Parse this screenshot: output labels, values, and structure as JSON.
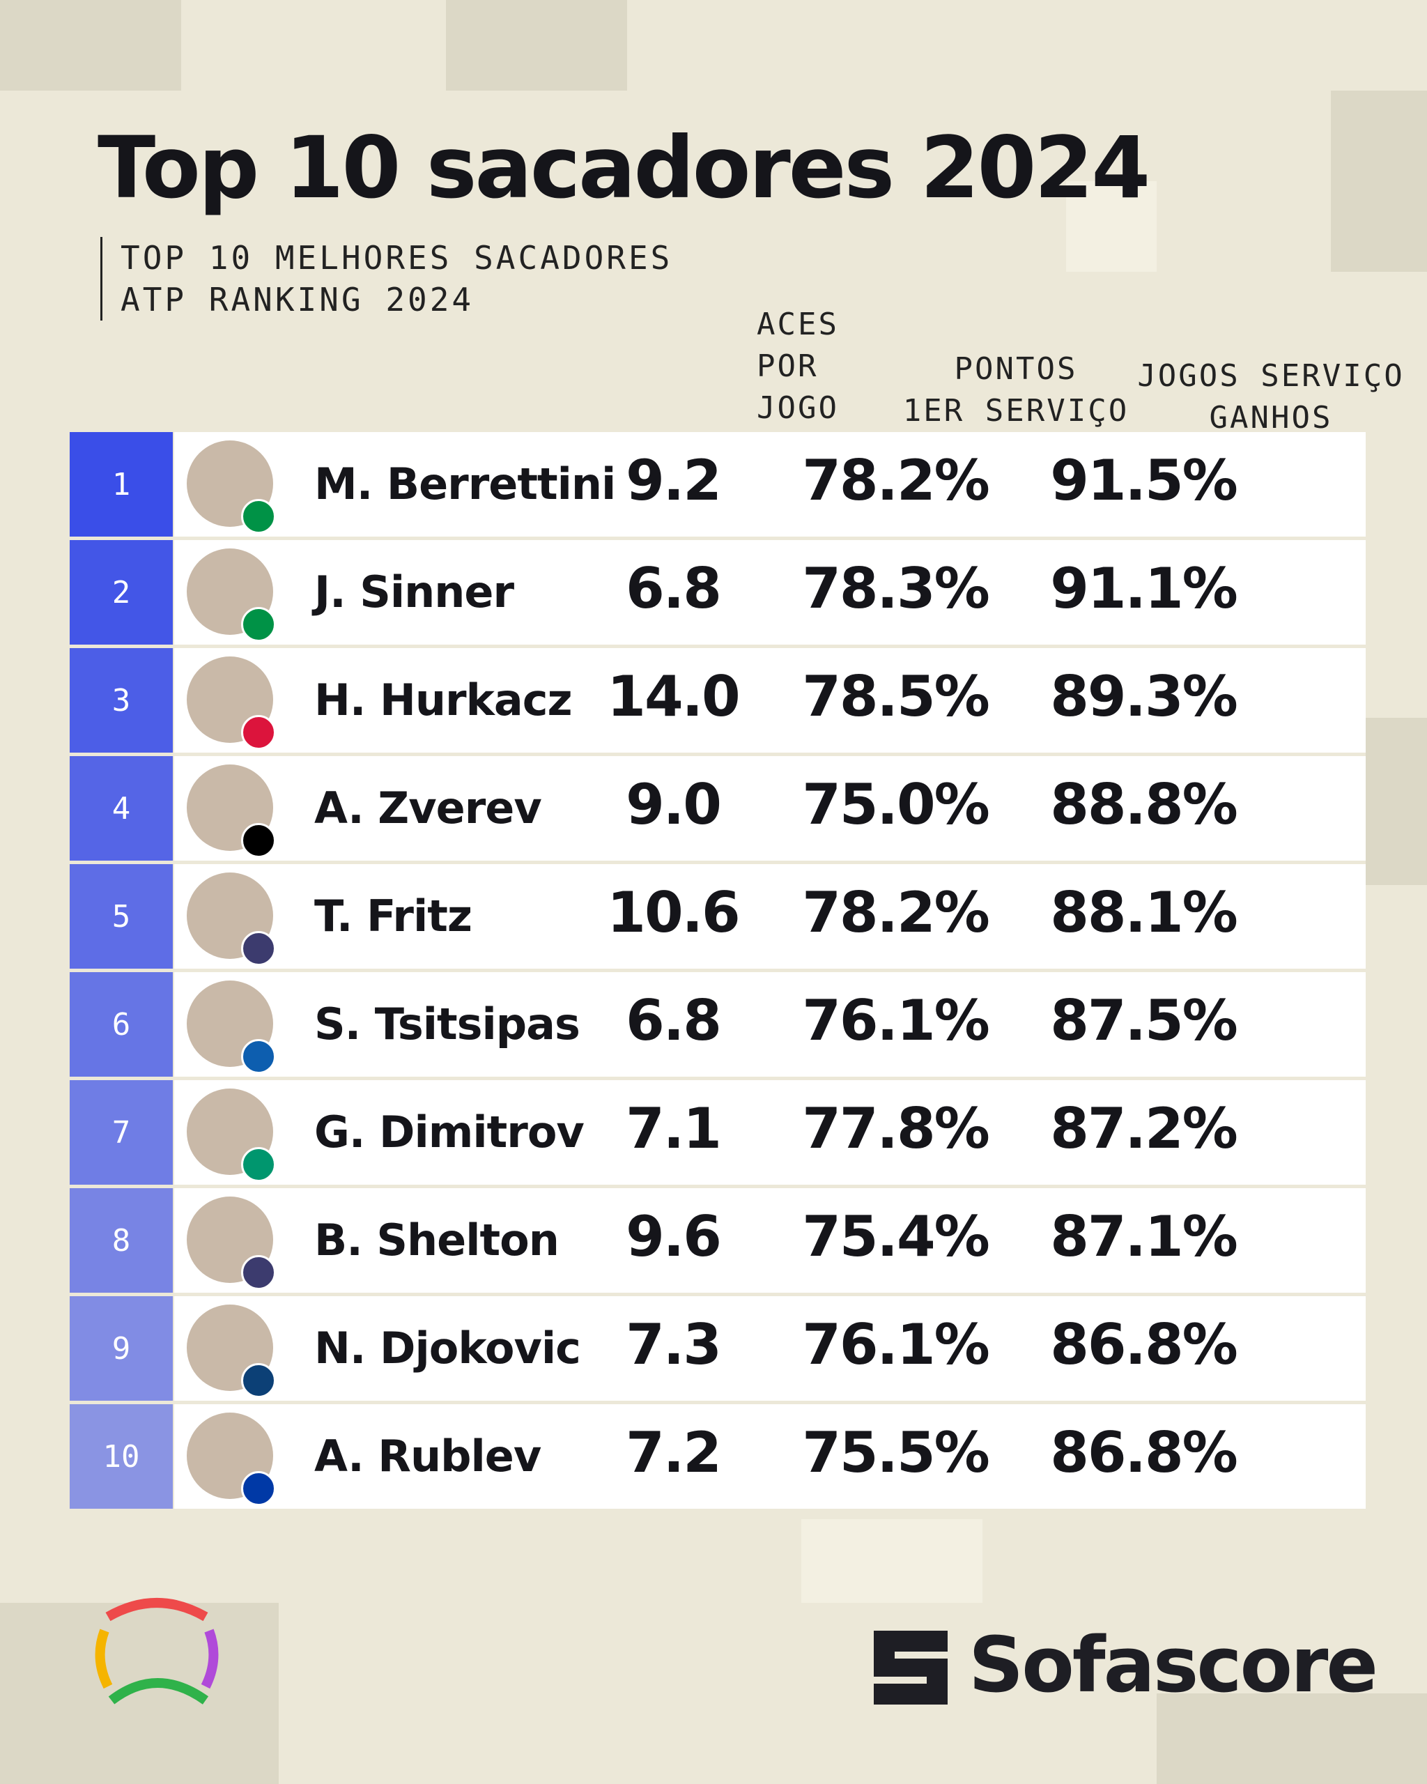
{
  "header": {
    "title": "Top 10 sacadores 2024",
    "subtitle_lines": [
      "TOP 10 MELHORES SACADORES",
      "ATP RANKING 2024"
    ]
  },
  "table": {
    "columns": [
      [
        "ACES",
        "POR",
        "JOGO"
      ],
      [
        "PONTOS",
        "1ER SERVIÇO"
      ],
      [
        "JOGOS SERVIÇO",
        "GANHOS"
      ]
    ],
    "rows": [
      [
        "1",
        "M. Berrettini",
        "9.2",
        "78.2%",
        "91.5%"
      ],
      [
        "2",
        "J. Sinner",
        "6.8",
        "78.3%",
        "91.1%"
      ],
      [
        "3",
        "H. Hurkacz",
        "14.0",
        "78.5%",
        "89.3%"
      ],
      [
        "4",
        "A. Zverev",
        "9.0",
        "75.0%",
        "88.8%"
      ],
      [
        "5",
        "T. Fritz",
        "10.6",
        "78.2%",
        "88.1%"
      ],
      [
        "6",
        "S. Tsitsipas",
        "6.8",
        "76.1%",
        "87.5%"
      ],
      [
        "7",
        "G. Dimitrov",
        "7.1",
        "77.8%",
        "87.2%"
      ],
      [
        "8",
        "B. Shelton",
        "9.6",
        "75.4%",
        "87.1%"
      ],
      [
        "9",
        "N. Djokovic",
        "7.3",
        "76.1%",
        "86.8%"
      ],
      [
        "10",
        "A. Rublev",
        "7.2",
        "75.5%",
        "86.8%"
      ]
    ]
  },
  "footer": {
    "brand": "Sofascore"
  }
}
